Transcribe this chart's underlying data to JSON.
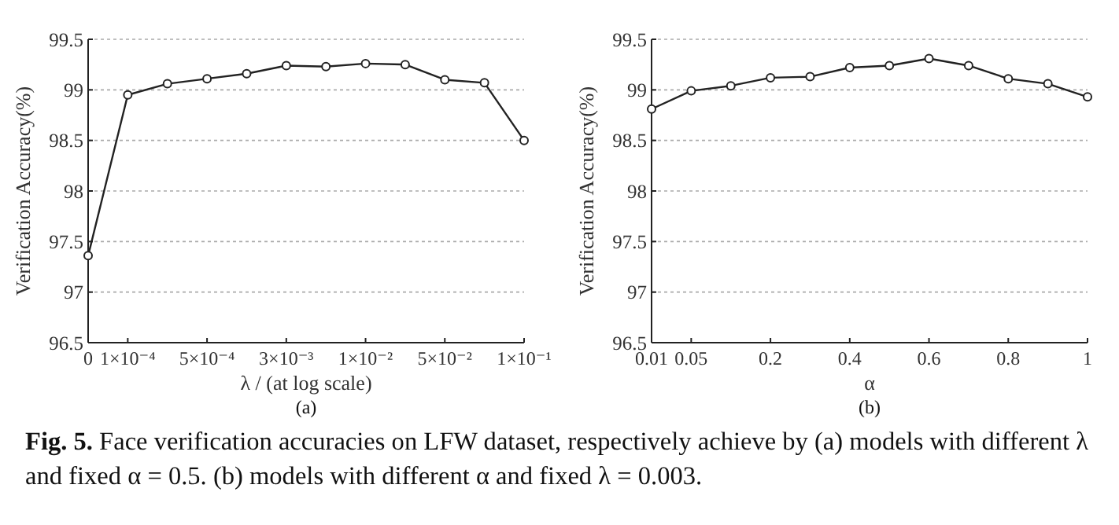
{
  "chart_data": [
    {
      "type": "line",
      "xlabel": "λ /  (at log scale)",
      "ylabel": "Verification Accuracy(%)",
      "annotations": [
        "(a)",
        "Fig. 5. Face verification accuracies on LFW dataset, respectively achieve by (a) models with different λ and fixed α = 0.5. (b) models with different α and fixed λ = 0.003."
      ],
      "categories": [
        "0",
        "1×10⁻⁴",
        null,
        "5×10⁻⁴",
        null,
        "3×10⁻³",
        null,
        "1×10⁻²",
        null,
        "5×10⁻²",
        null,
        "1×10⁻¹"
      ],
      "series": [
        {
          "color": "#222222",
          "values": [
            97.36,
            98.95,
            99.06,
            99.11,
            99.16,
            99.24,
            99.23,
            99.26,
            99.25,
            99.1,
            99.07,
            98.5
          ]
        }
      ],
      "ylim": [
        96.5,
        99.5
      ],
      "yticks": [
        96.5,
        97,
        97.5,
        98,
        98.5,
        99,
        99.5
      ],
      "grid": "y",
      "marker": "circle",
      "line_style": "solid"
    },
    {
      "type": "line",
      "xlabel": "α",
      "ylabel": "Verification Accuracy(%)",
      "annotations": [
        "(b)"
      ],
      "categories": [
        "0.01",
        "0.05",
        null,
        "0.2",
        null,
        "0.4",
        null,
        "0.6",
        null,
        "0.8",
        null,
        "1"
      ],
      "series": [
        {
          "color": "#222222",
          "values": [
            98.81,
            98.99,
            99.04,
            99.12,
            99.13,
            99.22,
            99.24,
            99.31,
            99.24,
            99.11,
            99.06,
            98.93
          ]
        }
      ],
      "ylim": [
        96.5,
        99.5
      ],
      "yticks": [
        96.5,
        97,
        97.5,
        98,
        98.5,
        99,
        99.5
      ],
      "grid": "y",
      "marker": "circle",
      "line_style": "solid"
    }
  ]
}
